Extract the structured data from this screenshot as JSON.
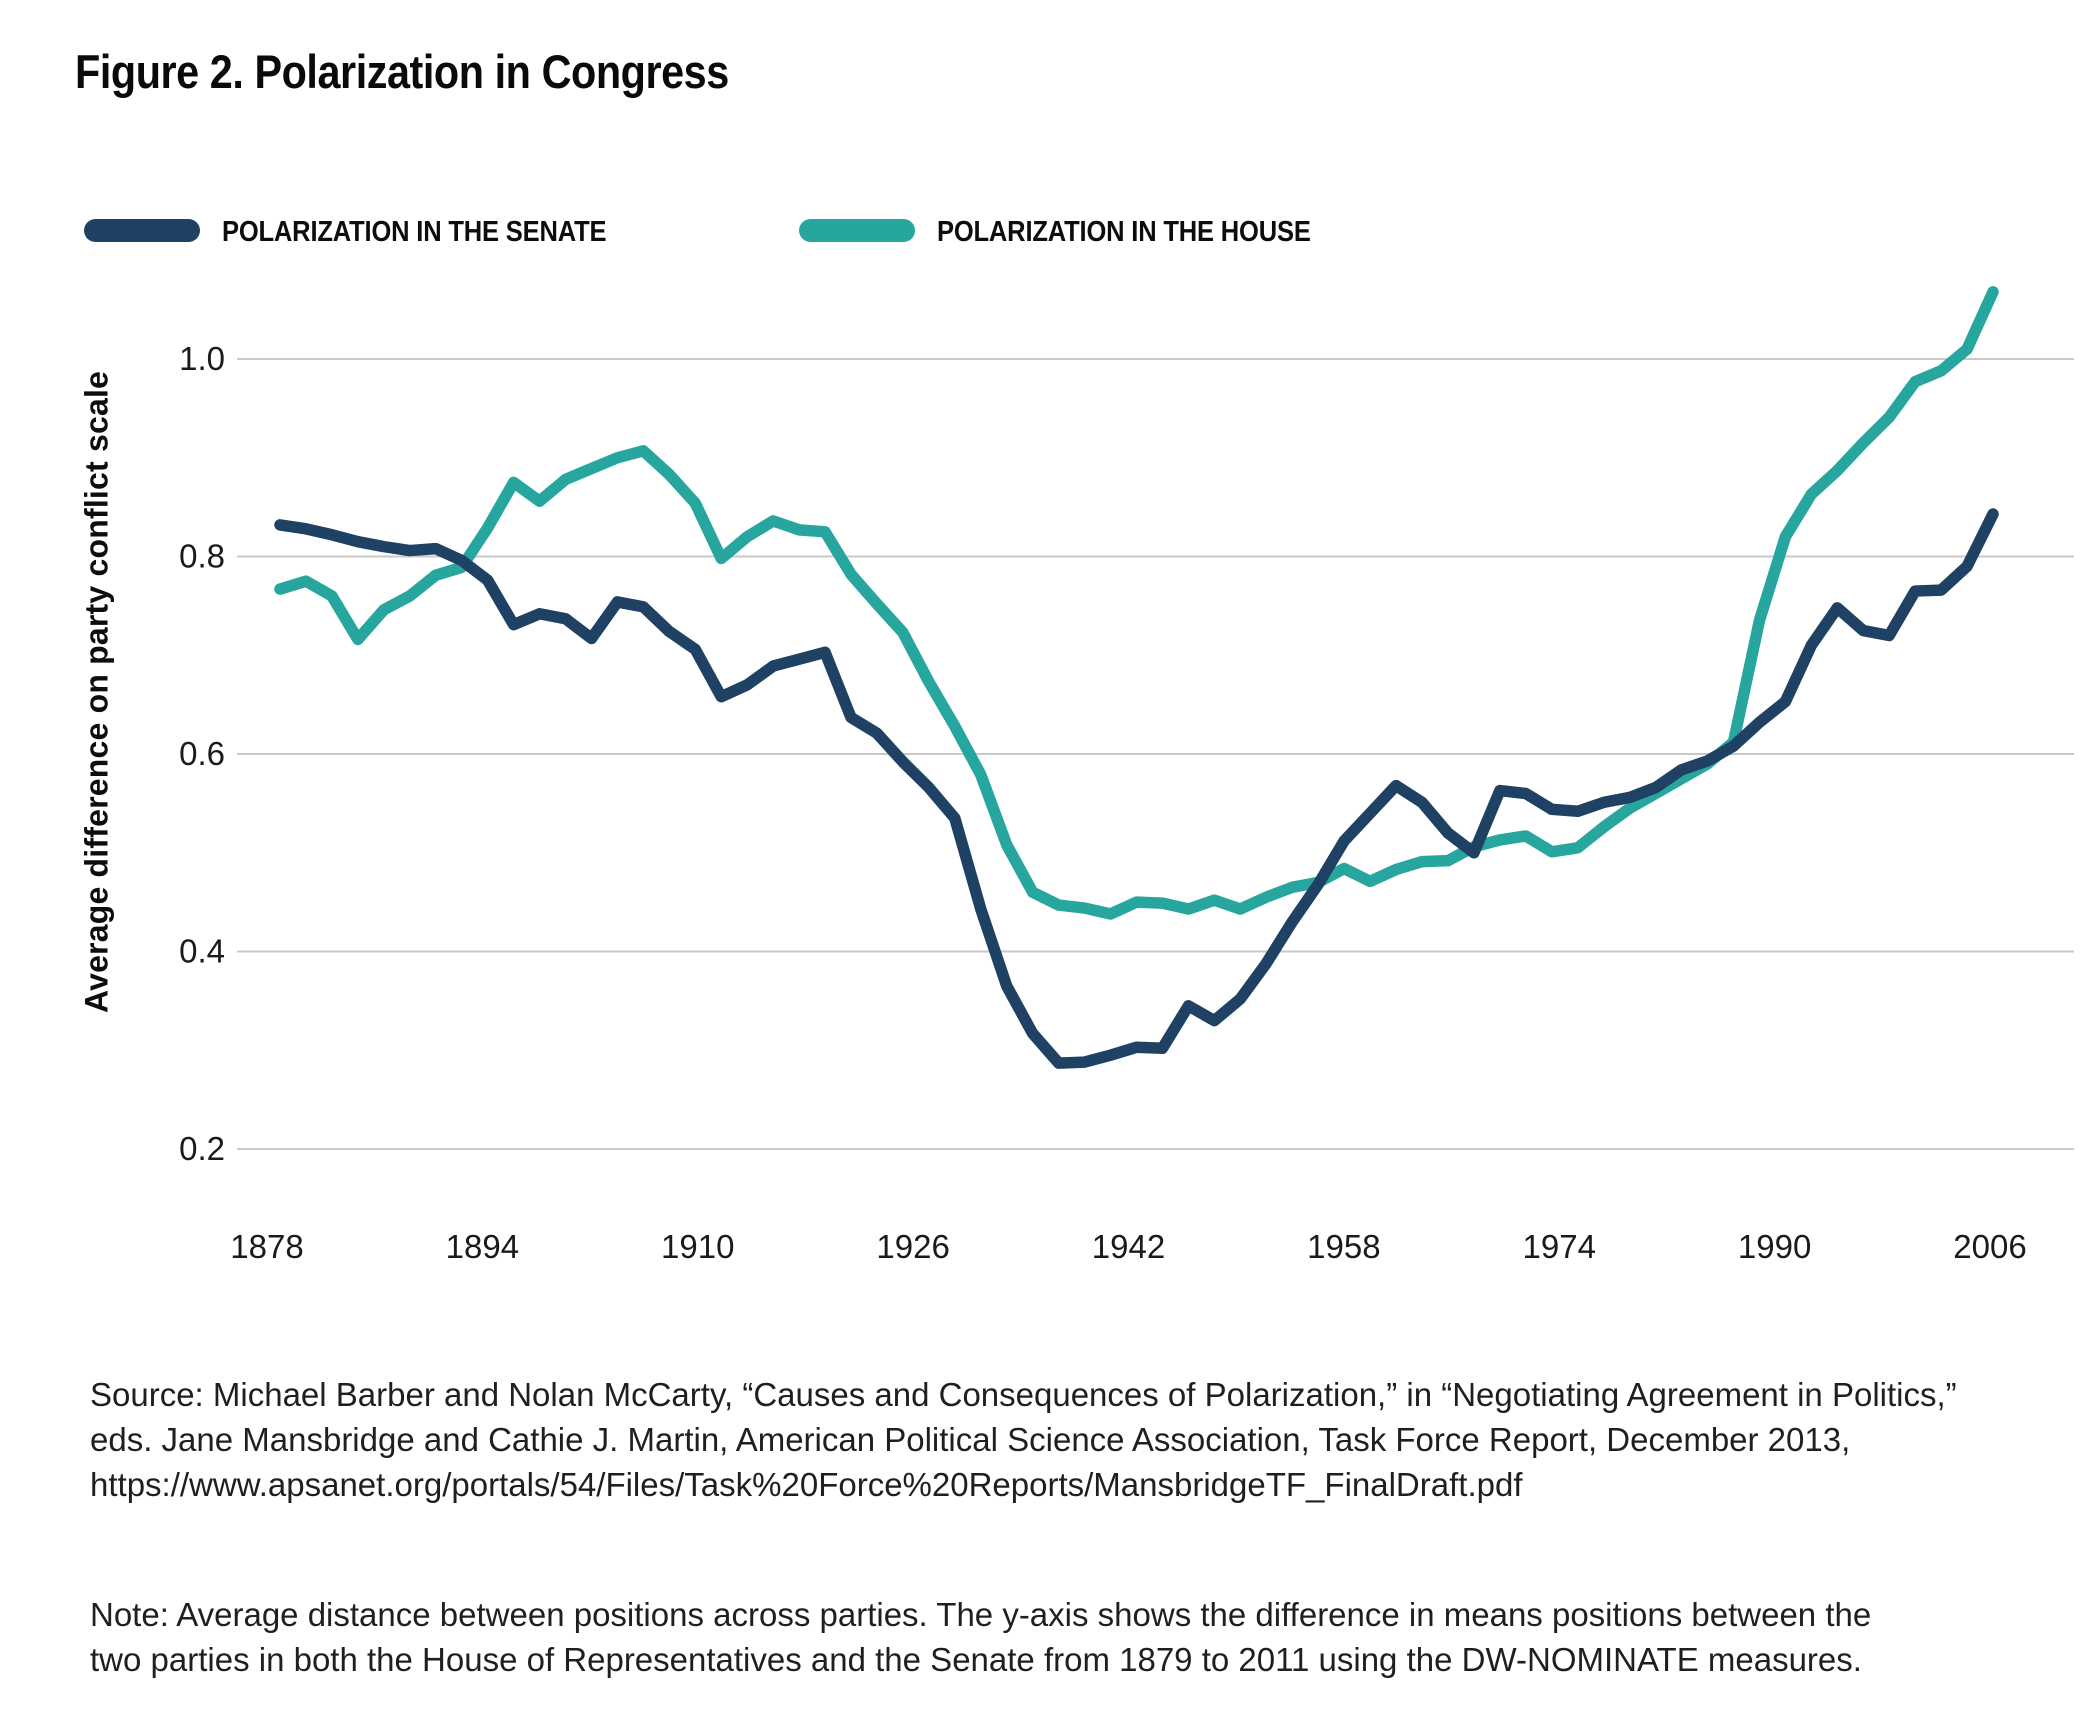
{
  "title": "Figure 2. Polarization in Congress",
  "legend": [
    {
      "label": "POLARIZATION IN THE SENATE",
      "color": "#1f4163"
    },
    {
      "label": "POLARIZATION IN THE HOUSE",
      "color": "#26a69e"
    }
  ],
  "y_axis_title": "Average difference on party conflict scale",
  "source": {
    "line1": "Source: Michael Barber and Nolan McCarty, “Causes and Consequences of Polarization,” in “Negotiating Agreement in Politics,”",
    "line2": "eds. Jane Mansbridge and Cathie J. Martin, American Political Science Association, Task Force Report, December 2013,",
    "line3": "https://www.apsanet.org/portals/54/Files/Task%20Force%20Reports/MansbridgeTF_FinalDraft.pdf"
  },
  "note": {
    "line1": "Note: Average distance between positions across parties. The y-axis shows the difference in means positions between the",
    "line2": "two parties in both the House of Representatives and the Senate from 1879 to 2011 using the DW-NOMINATE measures."
  },
  "colors": {
    "senate_line": "#1f4163",
    "house_line": "#26a69e",
    "gridline": "#c9c9c9",
    "background": "#ffffff",
    "text": "#1a1a1a"
  },
  "chart_data": {
    "type": "line",
    "title": "Figure 2. Polarization in Congress",
    "xlabel": "",
    "ylabel": "Average difference on party conflict scale",
    "x_tick_labels": [
      1878,
      1894,
      1910,
      1926,
      1942,
      1958,
      1974,
      1990,
      2006
    ],
    "y_tick_labels": [
      "1.0",
      "0.8",
      "0.6",
      "0.4",
      "0.2"
    ],
    "y_ticks": [
      1.0,
      0.8,
      0.6,
      0.4,
      0.2
    ],
    "ylim": [
      0.13,
      1.12
    ],
    "grid": "horizontal",
    "legend_position": "top",
    "x": [
      1879,
      1881,
      1883,
      1885,
      1887,
      1889,
      1891,
      1893,
      1895,
      1897,
      1899,
      1901,
      1903,
      1905,
      1907,
      1909,
      1911,
      1913,
      1915,
      1917,
      1919,
      1921,
      1923,
      1925,
      1927,
      1929,
      1931,
      1933,
      1935,
      1937,
      1939,
      1941,
      1943,
      1945,
      1947,
      1949,
      1951,
      1953,
      1955,
      1957,
      1959,
      1961,
      1963,
      1965,
      1967,
      1969,
      1971,
      1973,
      1975,
      1977,
      1979,
      1981,
      1983,
      1985,
      1987,
      1989,
      1991,
      1993,
      1995,
      1997,
      1999,
      2001,
      2003,
      2005,
      2007,
      2009,
      2011
    ],
    "series": [
      {
        "name": "Polarization in the Senate",
        "color": "#1f4163",
        "values": [
          0.832,
          0.828,
          0.822,
          0.815,
          0.81,
          0.806,
          0.808,
          0.796,
          0.776,
          0.731,
          0.742,
          0.737,
          0.717,
          0.754,
          0.749,
          0.724,
          0.706,
          0.658,
          0.67,
          0.689,
          0.696,
          0.703,
          0.637,
          0.621,
          0.592,
          0.566,
          0.535,
          0.443,
          0.365,
          0.317,
          0.287,
          0.288,
          0.295,
          0.303,
          0.302,
          0.345,
          0.33,
          0.352,
          0.388,
          0.43,
          0.468,
          0.512,
          0.54,
          0.568,
          0.551,
          0.52,
          0.5,
          0.563,
          0.56,
          0.544,
          0.542,
          0.551,
          0.556,
          0.566,
          0.584,
          0.593,
          0.608,
          0.632,
          0.653,
          0.71,
          0.748,
          0.725,
          0.72,
          0.765,
          0.766,
          0.79,
          0.843
        ]
      },
      {
        "name": "Polarization in the House",
        "color": "#26a69e",
        "values": [
          0.767,
          0.775,
          0.76,
          0.716,
          0.746,
          0.76,
          0.781,
          0.789,
          0.829,
          0.875,
          0.856,
          0.878,
          0.889,
          0.9,
          0.907,
          0.883,
          0.854,
          0.798,
          0.82,
          0.836,
          0.827,
          0.825,
          0.782,
          0.752,
          0.723,
          0.673,
          0.628,
          0.579,
          0.508,
          0.46,
          0.447,
          0.444,
          0.438,
          0.45,
          0.449,
          0.443,
          0.452,
          0.443,
          0.455,
          0.465,
          0.47,
          0.484,
          0.471,
          0.483,
          0.491,
          0.492,
          0.506,
          0.513,
          0.517,
          0.501,
          0.505,
          0.526,
          0.545,
          0.56,
          0.575,
          0.59,
          0.612,
          0.735,
          0.82,
          0.863,
          0.887,
          0.915,
          0.941,
          0.977,
          0.988,
          1.01,
          1.068
        ]
      }
    ]
  }
}
